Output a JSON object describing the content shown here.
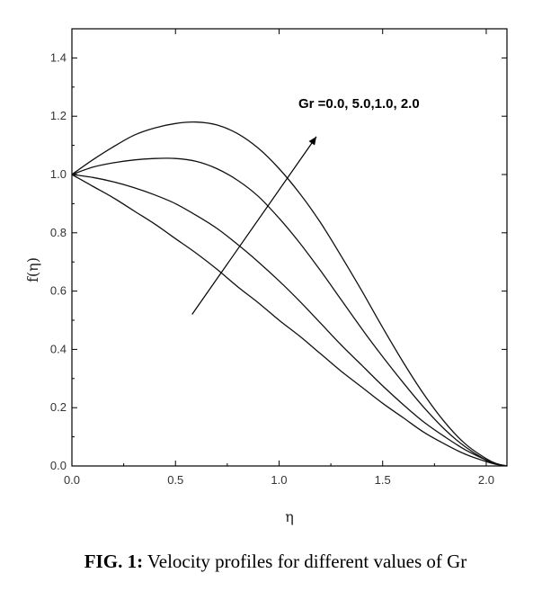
{
  "chart_data": {
    "type": "line",
    "xlabel": "η",
    "ylabel": "f(η)",
    "xlim": [
      0,
      2.1
    ],
    "ylim": [
      0,
      1.5
    ],
    "x_ticks": [
      "0.0",
      "0.5",
      "1.0",
      "1.5",
      "2.0"
    ],
    "y_ticks": [
      "0.0",
      "0.2",
      "0.4",
      "0.6",
      "0.8",
      "1.0",
      "1.2",
      "1.4"
    ],
    "grid": false,
    "annotation": "Gr =0.0, 5.0,1.0, 2.0",
    "series": [
      {
        "x": [
          0,
          0.1,
          0.2,
          0.3,
          0.4,
          0.5,
          0.6,
          0.7,
          0.8,
          0.9,
          1.0,
          1.1,
          1.2,
          1.3,
          1.4,
          1.5,
          1.6,
          1.7,
          1.8,
          1.9,
          2.0,
          2.05,
          2.1
        ],
        "y": [
          1.0,
          0.96,
          0.92,
          0.875,
          0.83,
          0.78,
          0.73,
          0.675,
          0.615,
          0.56,
          0.5,
          0.445,
          0.385,
          0.325,
          0.27,
          0.215,
          0.165,
          0.115,
          0.075,
          0.04,
          0.015,
          0.005,
          0.0
        ]
      },
      {
        "x": [
          0,
          0.1,
          0.2,
          0.3,
          0.4,
          0.5,
          0.6,
          0.7,
          0.8,
          0.9,
          1.0,
          1.1,
          1.2,
          1.3,
          1.4,
          1.5,
          1.6,
          1.7,
          1.8,
          1.9,
          2.0,
          2.05,
          2.1
        ],
        "y": [
          1.0,
          0.99,
          0.975,
          0.955,
          0.93,
          0.9,
          0.86,
          0.815,
          0.76,
          0.7,
          0.635,
          0.565,
          0.49,
          0.415,
          0.345,
          0.275,
          0.21,
          0.15,
          0.1,
          0.055,
          0.02,
          0.007,
          0.0
        ]
      },
      {
        "x": [
          0,
          0.1,
          0.2,
          0.3,
          0.4,
          0.5,
          0.6,
          0.7,
          0.8,
          0.9,
          1.0,
          1.1,
          1.2,
          1.3,
          1.4,
          1.5,
          1.6,
          1.7,
          1.8,
          1.9,
          2.0,
          2.05,
          2.1
        ],
        "y": [
          1.0,
          1.025,
          1.04,
          1.05,
          1.055,
          1.055,
          1.045,
          1.02,
          0.98,
          0.925,
          0.85,
          0.765,
          0.67,
          0.57,
          0.47,
          0.375,
          0.285,
          0.2,
          0.125,
          0.065,
          0.02,
          0.007,
          0.0
        ]
      },
      {
        "x": [
          0,
          0.1,
          0.2,
          0.3,
          0.4,
          0.5,
          0.6,
          0.7,
          0.8,
          0.9,
          1.0,
          1.1,
          1.2,
          1.3,
          1.4,
          1.5,
          1.6,
          1.7,
          1.8,
          1.9,
          2.0,
          2.05,
          2.1
        ],
        "y": [
          1.0,
          1.05,
          1.095,
          1.135,
          1.16,
          1.175,
          1.18,
          1.17,
          1.14,
          1.09,
          1.02,
          0.935,
          0.835,
          0.72,
          0.6,
          0.475,
          0.355,
          0.245,
          0.15,
          0.075,
          0.025,
          0.008,
          0.0
        ]
      }
    ],
    "arrow": {
      "from": [
        0.58,
        0.52
      ],
      "to": [
        1.18,
        1.13
      ]
    }
  },
  "caption": {
    "label": "FIG. 1:",
    "text": " Velocity profiles for different values of Gr"
  }
}
